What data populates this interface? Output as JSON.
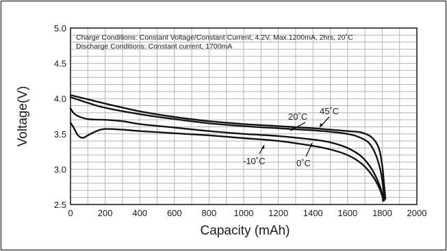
{
  "chart_data": {
    "type": "line",
    "xlabel": "Capacity (mAh)",
    "ylabel": "Voltage(V)",
    "xlim": [
      0,
      2000
    ],
    "ylim": [
      2.5,
      5.0
    ],
    "x_ticks": [
      "0",
      "200",
      "400",
      "600",
      "800",
      "1000",
      "1200",
      "1400",
      "1600",
      "1800",
      "2000"
    ],
    "y_ticks": [
      "2.5",
      "3.0",
      "3.5",
      "4.0",
      "4.5",
      "5.0"
    ],
    "grid": true,
    "annotations": [
      "Charge Conditions: Constant Voltage/Constant Current, 4.2V, Max.1200mA, 2hrs, 20˚C",
      "Discharge Conditions: Constant current, 1700mA"
    ],
    "series": [
      {
        "name": "45˚C",
        "x": [
          0,
          50,
          100,
          200,
          400,
          600,
          800,
          1000,
          1200,
          1400,
          1500,
          1600,
          1680,
          1740,
          1780,
          1800,
          1810,
          1818
        ],
        "y": [
          4.05,
          4.02,
          3.99,
          3.93,
          3.82,
          3.74,
          3.68,
          3.64,
          3.61,
          3.58,
          3.56,
          3.54,
          3.52,
          3.45,
          3.3,
          3.05,
          2.8,
          2.58
        ]
      },
      {
        "name": "20˚C",
        "x": [
          0,
          50,
          100,
          200,
          400,
          600,
          800,
          1000,
          1200,
          1400,
          1500,
          1600,
          1660,
          1720,
          1760,
          1790,
          1805,
          1812
        ],
        "y": [
          4.02,
          3.98,
          3.94,
          3.87,
          3.78,
          3.71,
          3.65,
          3.61,
          3.58,
          3.55,
          3.53,
          3.5,
          3.46,
          3.38,
          3.22,
          2.98,
          2.75,
          2.56
        ]
      },
      {
        "name": "0˚C",
        "x": [
          0,
          30,
          100,
          200,
          300,
          400,
          600,
          800,
          1000,
          1200,
          1400,
          1500,
          1600,
          1680,
          1740,
          1780,
          1800,
          1808
        ],
        "y": [
          3.86,
          3.77,
          3.71,
          3.7,
          3.68,
          3.64,
          3.59,
          3.54,
          3.5,
          3.47,
          3.42,
          3.38,
          3.3,
          3.18,
          3.0,
          2.8,
          2.65,
          2.55
        ]
      },
      {
        "name": "-10˚C",
        "x": [
          0,
          20,
          40,
          60,
          80,
          100,
          150,
          200,
          300,
          400,
          600,
          800,
          1000,
          1200,
          1400,
          1500,
          1600,
          1680,
          1740,
          1780,
          1800,
          1805
        ],
        "y": [
          3.66,
          3.58,
          3.49,
          3.45,
          3.45,
          3.48,
          3.54,
          3.57,
          3.56,
          3.54,
          3.51,
          3.48,
          3.44,
          3.4,
          3.33,
          3.28,
          3.2,
          3.08,
          2.92,
          2.75,
          2.62,
          2.55
        ]
      }
    ]
  }
}
